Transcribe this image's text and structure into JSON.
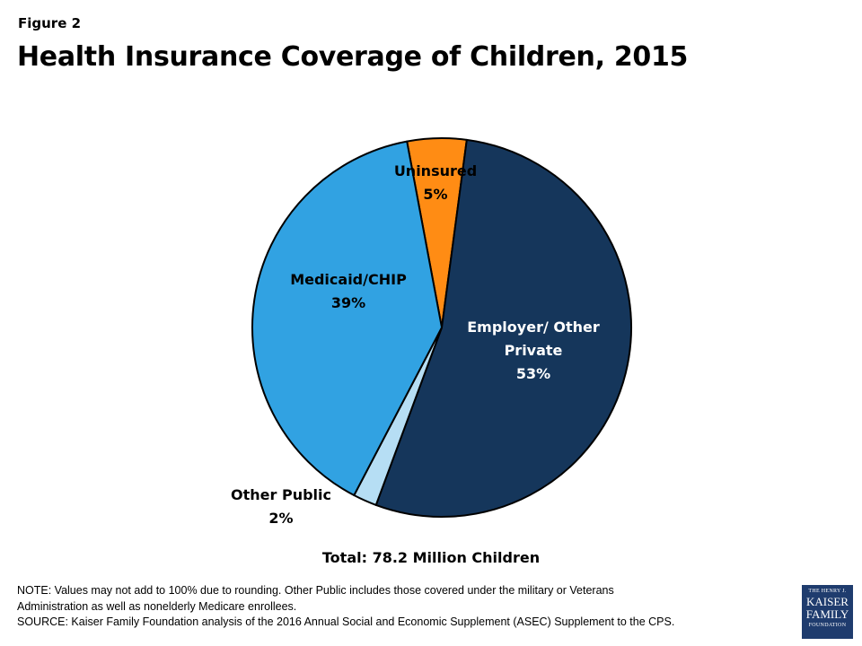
{
  "figure_label": "Figure 2",
  "chart_data": {
    "type": "pie",
    "title": "Health Insurance Coverage of Children, 2015",
    "slices": [
      {
        "label": "Uninsured",
        "value": 5,
        "value_label": "5%",
        "color": "#ff8c14"
      },
      {
        "label": "Employer/ Other Private",
        "value": 53,
        "value_label": "53%",
        "color": "#15365b"
      },
      {
        "label": "Other Public",
        "value": 2,
        "value_label": "2%",
        "color": "#b6def4"
      },
      {
        "label": "Medicaid/CHIP",
        "value": 39,
        "value_label": "39%",
        "color": "#31a2e2"
      }
    ],
    "total": "Total: 78.2 Million Children"
  },
  "notes": {
    "line1": "NOTE: Values may not add to 100% due to rounding. Other Public includes those covered under the military or Veterans",
    "line2": "Administration as well as nonelderly Medicare enrollees.",
    "line3": "SOURCE: Kaiser Family Foundation  analysis of the 2016 Annual Social and Economic Supplement (ASEC) Supplement to the CPS."
  },
  "logo": {
    "line1": "THE HENRY J.",
    "line2": "KAISER",
    "line3": "FAMILY",
    "line4": "FOUNDATION"
  }
}
